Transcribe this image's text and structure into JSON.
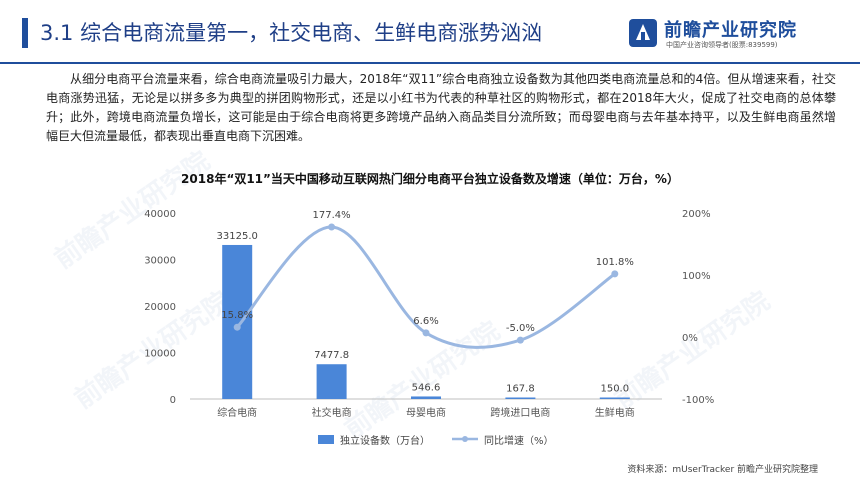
{
  "header": {
    "title": "3.1  综合电商流量第一，社交电商、生鲜电商涨势汹汹",
    "logo_name": "前瞻产业研究院",
    "logo_sub": "中国产业咨询领导者(股票:839599)"
  },
  "body": {
    "paragraph": "从细分电商平台流量来看，综合电商流量吸引力最大，2018年“双11”综合电商独立设备数为其他四类电商流量总和的4倍。但从增速来看，社交电商涨势迅猛，无论是以拼多多为典型的拼团购物形式，还是以小红书为代表的种草社区的购物形式，都在2018年大火，促成了社交电商的总体攀升；此外，跨境电商流量负增长，这可能是由于综合电商将更多跨境产品纳入商品类目分流所致；而母婴电商与去年基本持平，以及生鲜电商虽然增幅巨大但流量最低，都表现出垂直电商下沉困难。"
  },
  "watermark": "前瞻产业研究院",
  "colors": {
    "bar": "#4a86d8",
    "line": "#9ab7e1",
    "title": "#1f3f87",
    "accent": "#1f4e9c"
  },
  "chart_data": {
    "type": "bar",
    "title": "2018年“双11”当天中国移动互联网热门细分电商平台独立设备数及增速（单位：万台，%）",
    "categories": [
      "综合电商",
      "社交电商",
      "母婴电商",
      "跨境进口电商",
      "生鲜电商"
    ],
    "series": [
      {
        "name": "独立设备数（万台）",
        "type": "bar",
        "axis": "left",
        "values": [
          33125.0,
          7477.8,
          546.6,
          167.8,
          150.0
        ],
        "labels": [
          "33125.0",
          "7477.8",
          "546.6",
          "167.8",
          "150.0"
        ]
      },
      {
        "name": "同比增速（%）",
        "type": "line",
        "axis": "right",
        "smooth": true,
        "values": [
          15.8,
          177.4,
          6.6,
          -5.0,
          101.8
        ],
        "labels": [
          "15.8%",
          "177.4%",
          "6.6%",
          "-5.0%",
          "101.8%"
        ]
      }
    ],
    "ylim_left": [
      0,
      40000
    ],
    "yticks_left": [
      "0",
      "10000",
      "20000",
      "30000",
      "40000"
    ],
    "ylim_right": [
      -100,
      200
    ],
    "yticks_right": [
      "-100%",
      "0%",
      "100%",
      "200%"
    ],
    "legend_position": "bottom",
    "grid": false,
    "source": "资料来源：mUserTracker 前瞻产业研究院整理"
  }
}
